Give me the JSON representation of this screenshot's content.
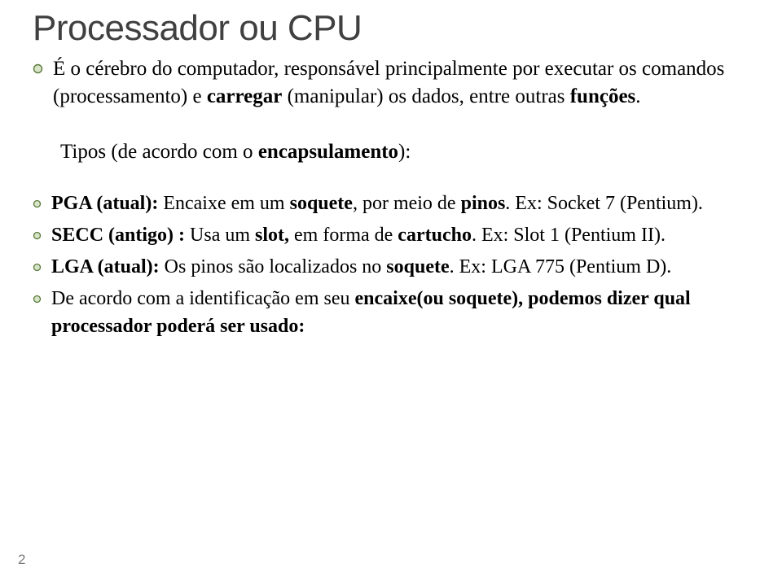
{
  "title": "Processador ou CPU",
  "lead_html": "É o cérebro do computador, responsável principalmente por executar os comandos (processamento) e <b>carregar</b> (manipular) os dados, entre outras <b>funções</b>.",
  "section_label_html": "Tipos (de acordo com o <b>encapsulamento</b>):",
  "items": [
    "<b>PGA (atual):</b> Encaixe em um <b>soquete</b>, por meio de <b>pinos</b>. Ex: Socket 7 (Pentium).",
    "<b>SECC (antigo) :</b> Usa um <b>slot,</b> em forma de <b>cartucho</b>. Ex: Slot 1 (Pentium II).",
    "<b>LGA (atual):</b> Os pinos são localizados no <b>soquete</b>. Ex: LGA 775 (Pentium D).",
    "De acordo com a identificação em seu <b>encaixe(ou soquete), podemos dizer qual processador poderá ser usado:</b>"
  ],
  "page_number": "2",
  "colors": {
    "bullet_stroke": "#5a7a3a",
    "bullet_fill": "#d8e4c8",
    "title_color": "#404040",
    "text_color": "#000000",
    "page_num_color": "#7a7a7a",
    "background": "#ffffff"
  },
  "bullet_outer_radius": 5.5,
  "bullet_inner_radius": 4.5,
  "lead_fontsize": 25,
  "item_fontsize": 24,
  "title_fontsize": 44
}
